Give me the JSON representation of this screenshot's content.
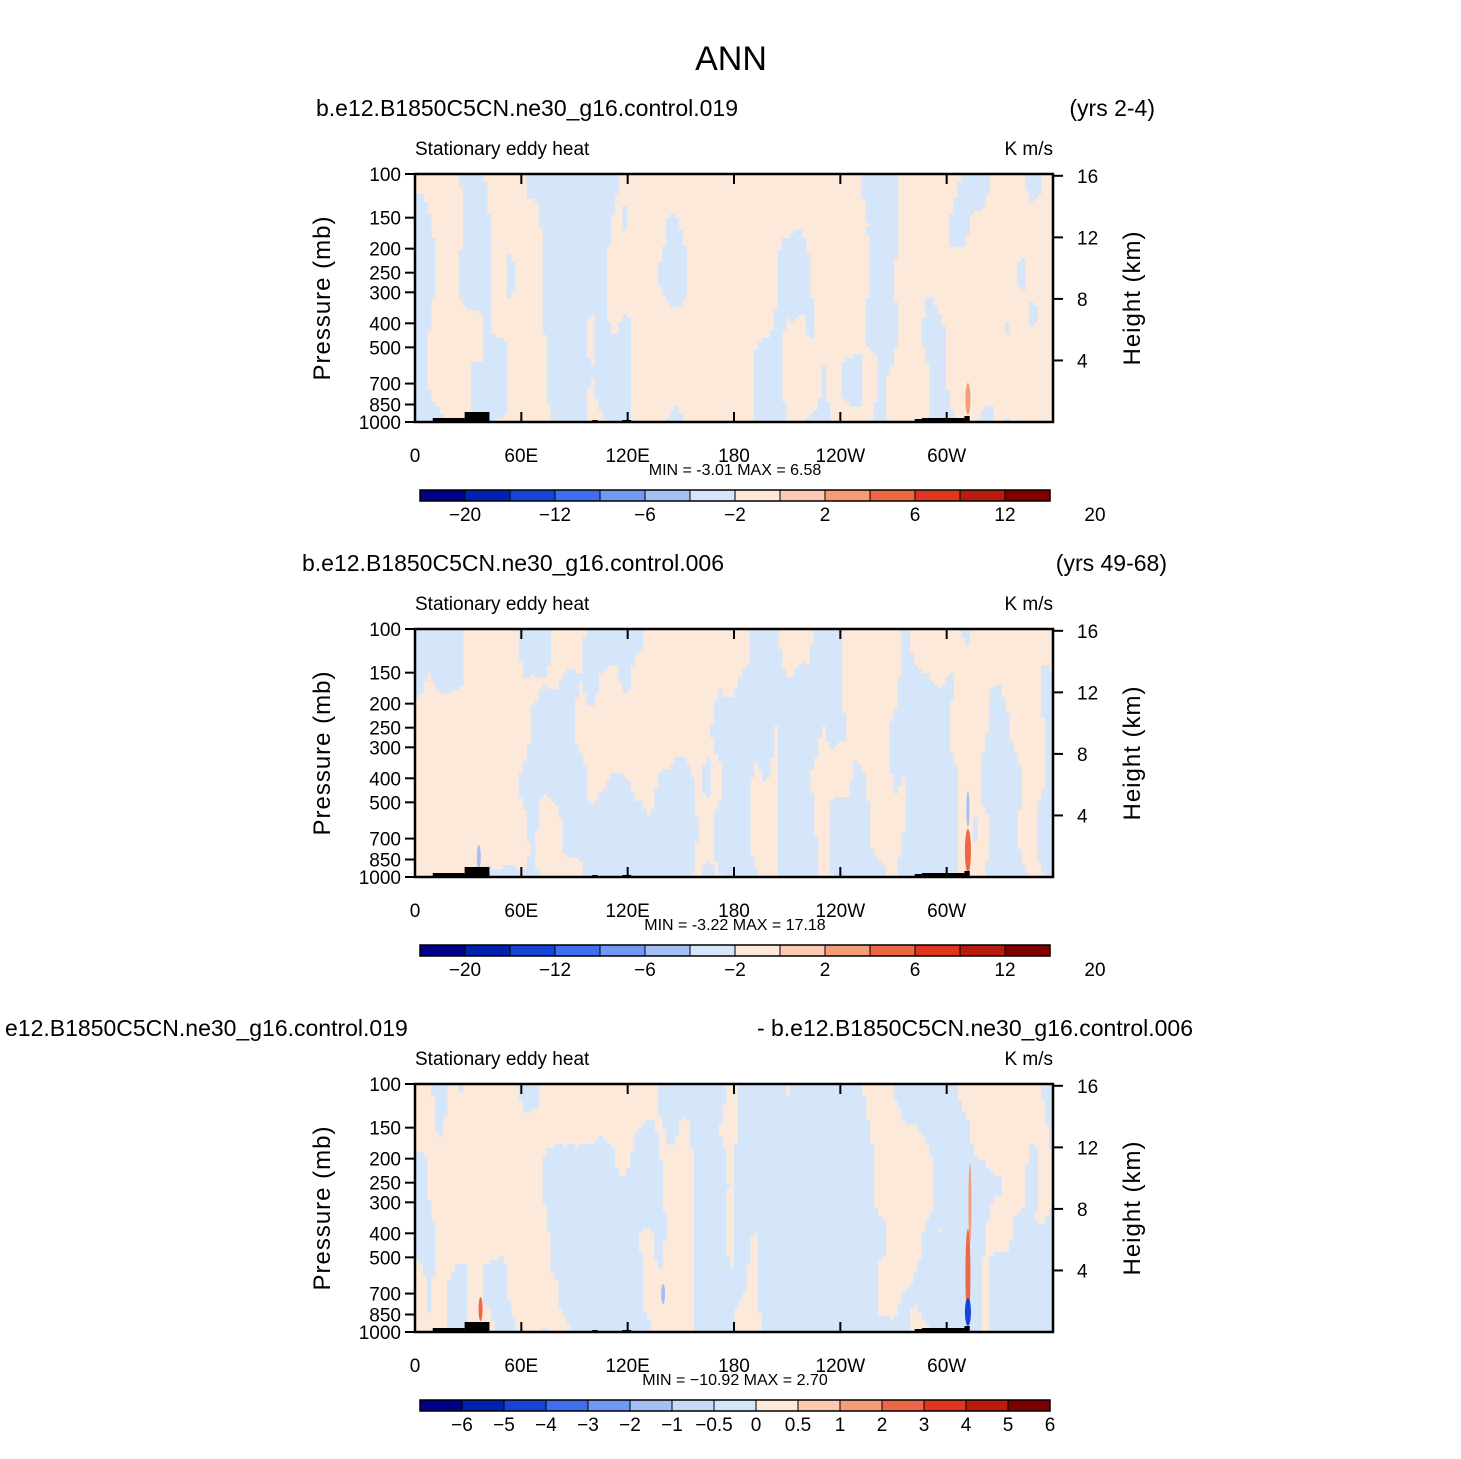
{
  "figure": {
    "title": "ANN"
  },
  "colors": {
    "ref_palette": [
      "#00008b",
      "#0022b0",
      "#1545d6",
      "#3f6ff0",
      "#6f98f7",
      "#a3bff5",
      "#d5e6fa",
      "#fde9d9",
      "#fbcab0",
      "#f59c79",
      "#ed6745",
      "#e0361f",
      "#b91c0e",
      "#800000"
    ],
    "diff_palette": [
      "#00008b",
      "#0022b0",
      "#1545d6",
      "#3f6ff0",
      "#6f98f7",
      "#a3bff5",
      "#c7dbf8",
      "#d5e6fa",
      "#fde9d9",
      "#fbcab0",
      "#f59c79",
      "#ed6745",
      "#e0361f",
      "#b91c0e",
      "#800000"
    ],
    "topography": "#000000"
  },
  "chart_data": [
    {
      "type": "heatmap",
      "case_label": "b.e12.B1850C5CN.ne30_g16.control.019",
      "years_label": "(yrs 2-4)",
      "variable_label": "Stationary eddy heat",
      "units_label": "K m/s",
      "ylabel": "Pressure (mb)",
      "y2label": "Height (km)",
      "x_ticks": [
        "0",
        "60E",
        "120E",
        "180",
        "120W",
        "60W"
      ],
      "x_tick_lon": [
        0,
        60,
        120,
        180,
        240,
        300
      ],
      "xlim": [
        0,
        360
      ],
      "y_ticks": [
        "100",
        "150",
        "200",
        "250",
        "300",
        "400",
        "500",
        "700",
        "850",
        "1000"
      ],
      "y_tick_p": [
        100,
        150,
        200,
        250,
        300,
        400,
        500,
        700,
        850,
        1000
      ],
      "ylim": [
        1000,
        100
      ],
      "y2_ticks": [
        "16",
        "12",
        "8",
        "4"
      ],
      "y2_tick_km": [
        16,
        12,
        8,
        4
      ],
      "stats_text": "MIN =   -3.01   MAX =    6.58",
      "min": -3.01,
      "max": 6.58,
      "levels": [
        "-20",
        "-12",
        "-6",
        "-2",
        "2",
        "6",
        "12",
        "20"
      ],
      "colorbar_labels": [
        "−20",
        "−12",
        "−6",
        "−2",
        "2",
        "6",
        "12",
        "20"
      ],
      "field_pattern": "ref1"
    },
    {
      "type": "heatmap",
      "case_label": "b.e12.B1850C5CN.ne30_g16.control.006",
      "years_label": "(yrs 49-68)",
      "variable_label": "Stationary eddy heat",
      "units_label": "K m/s",
      "ylabel": "Pressure (mb)",
      "y2label": "Height (km)",
      "x_ticks": [
        "0",
        "60E",
        "120E",
        "180",
        "120W",
        "60W"
      ],
      "x_tick_lon": [
        0,
        60,
        120,
        180,
        240,
        300
      ],
      "xlim": [
        0,
        360
      ],
      "y_ticks": [
        "100",
        "150",
        "200",
        "250",
        "300",
        "400",
        "500",
        "700",
        "850",
        "1000"
      ],
      "y_tick_p": [
        100,
        150,
        200,
        250,
        300,
        400,
        500,
        700,
        850,
        1000
      ],
      "ylim": [
        1000,
        100
      ],
      "y2_ticks": [
        "16",
        "12",
        "8",
        "4"
      ],
      "y2_tick_km": [
        16,
        12,
        8,
        4
      ],
      "stats_text": "MIN =   -3.22   MAX =   17.18",
      "min": -3.22,
      "max": 17.18,
      "levels": [
        "-20",
        "-12",
        "-6",
        "-2",
        "2",
        "6",
        "12",
        "20"
      ],
      "colorbar_labels": [
        "−20",
        "−12",
        "−6",
        "−2",
        "2",
        "6",
        "12",
        "20"
      ],
      "field_pattern": "ref2"
    },
    {
      "type": "heatmap",
      "case_label": "e12.B1850C5CN.ne30_g16.control.019",
      "years_label": "- b.e12.B1850C5CN.ne30_g16.control.006",
      "variable_label": "Stationary eddy heat",
      "units_label": "K m/s",
      "ylabel": "Pressure (mb)",
      "y2label": "Height (km)",
      "x_ticks": [
        "0",
        "60E",
        "120E",
        "180",
        "120W",
        "60W"
      ],
      "x_tick_lon": [
        0,
        60,
        120,
        180,
        240,
        300
      ],
      "xlim": [
        0,
        360
      ],
      "y_ticks": [
        "100",
        "150",
        "200",
        "250",
        "300",
        "400",
        "500",
        "700",
        "850",
        "1000"
      ],
      "y_tick_p": [
        100,
        150,
        200,
        250,
        300,
        400,
        500,
        700,
        850,
        1000
      ],
      "ylim": [
        1000,
        100
      ],
      "y2_ticks": [
        "16",
        "12",
        "8",
        "4"
      ],
      "y2_tick_km": [
        16,
        12,
        8,
        4
      ],
      "stats_text": "MIN = −10.92   MAX =    2.70",
      "min": -10.92,
      "max": 2.7,
      "levels": [
        "-6",
        "-5",
        "-4",
        "-3",
        "-2",
        "-1",
        "-0.5",
        "0",
        "0.5",
        "1",
        "2",
        "3",
        "4",
        "5",
        "6"
      ],
      "colorbar_labels": [
        "−6",
        "−5",
        "−4",
        "−3",
        "−2",
        "−1",
        "−0.5",
        "0",
        "0.5",
        "1",
        "2",
        "3",
        "4",
        "5",
        "6"
      ],
      "field_pattern": "diff"
    }
  ]
}
